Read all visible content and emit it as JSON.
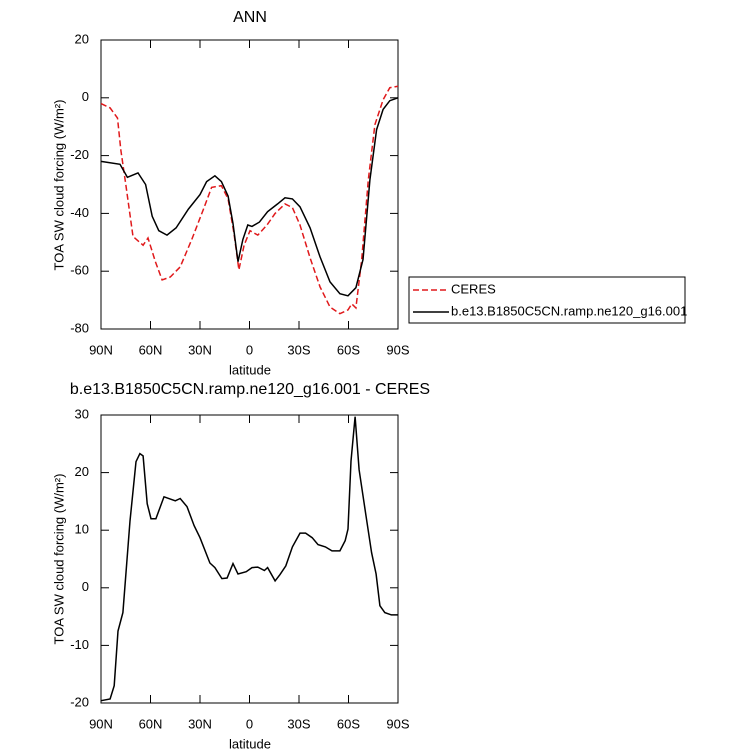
{
  "chart_data": [
    {
      "type": "line",
      "title": "ANN",
      "xlabel": "latitude",
      "ylabel": "TOA SW cloud forcing (W/m²)",
      "xlim": [
        90,
        -90
      ],
      "xticks": [
        {
          "value": 90,
          "label": "90N"
        },
        {
          "value": 60,
          "label": "60N"
        },
        {
          "value": 30,
          "label": "30N"
        },
        0,
        {
          "value": -30,
          "label": "30S"
        },
        {
          "value": -60,
          "label": "60S"
        },
        {
          "value": -90,
          "label": "90S"
        }
      ],
      "ylim": [
        -80,
        20
      ],
      "yticks": [
        20,
        0,
        -20,
        -40,
        -60,
        -80
      ],
      "legend": "right",
      "series": [
        {
          "name": "CERES",
          "color": "#e0191b",
          "dash": true,
          "x": [
            90,
            84.5,
            80,
            78,
            75,
            70.6,
            64.5,
            61.5,
            57,
            53,
            48,
            42,
            35,
            28,
            23,
            17,
            13,
            9.4,
            6.4,
            3.3,
            -0.3,
            -5,
            -10.6,
            -15.5,
            -21.5,
            -26,
            -30.6,
            -36.7,
            -42.7,
            -48.8,
            -54.8,
            -59.7,
            -62,
            -64.5,
            -68,
            -72,
            -76,
            -81,
            -85,
            -90
          ],
          "values": [
            -2,
            -3.5,
            -7,
            -18,
            -30,
            -48,
            -51,
            -48.5,
            -56.7,
            -63,
            -62,
            -58.5,
            -49,
            -38.7,
            -31,
            -30.4,
            -35,
            -47,
            -59.5,
            -51,
            -46,
            -47.5,
            -44,
            -40,
            -36.7,
            -38,
            -44,
            -55.4,
            -65.4,
            -72.4,
            -74.7,
            -73.4,
            -71.3,
            -72.7,
            -56,
            -28.4,
            -9.3,
            -0.7,
            3.5,
            4
          ]
        },
        {
          "name": "b.e13.B1850C5CN.ramp.ne120_g16.001",
          "color": "#000000",
          "dash": false,
          "x": [
            90,
            78.5,
            74,
            67.6,
            63,
            59,
            55,
            50,
            44.5,
            37,
            30,
            26,
            21,
            17,
            13,
            10,
            7,
            4,
            1,
            -1.5,
            -6,
            -11,
            -17,
            -21.5,
            -26,
            -30.6,
            -36.7,
            -42.7,
            -48.8,
            -54.8,
            -59.7,
            -64.5,
            -68.8,
            -73,
            -77,
            -81,
            -85,
            -90
          ],
          "values": [
            -22,
            -23,
            -27.5,
            -26,
            -30,
            -41,
            -46,
            -47.5,
            -45,
            -38.5,
            -33.5,
            -29,
            -27,
            -29,
            -34,
            -43.5,
            -56.7,
            -49,
            -44,
            -44.5,
            -43,
            -39.4,
            -36.7,
            -34.6,
            -35,
            -37.7,
            -45,
            -55,
            -63.7,
            -67.8,
            -68.5,
            -65.7,
            -56,
            -28.4,
            -11,
            -4,
            -1,
            0
          ]
        }
      ]
    },
    {
      "type": "line",
      "title": "b.e13.B1850C5CN.ramp.ne120_g16.001 - CERES",
      "xlabel": "latitude",
      "ylabel": "TOA SW cloud forcing (W/m²)",
      "xlim": [
        90,
        -90
      ],
      "xticks": [
        {
          "value": 90,
          "label": "90N"
        },
        {
          "value": 60,
          "label": "60N"
        },
        {
          "value": 30,
          "label": "30N"
        },
        0,
        {
          "value": -30,
          "label": "30S"
        },
        {
          "value": -60,
          "label": "60S"
        },
        {
          "value": -90,
          "label": "90S"
        }
      ],
      "ylim": [
        -20,
        30
      ],
      "yticks": [
        30,
        20,
        10,
        0,
        -10,
        -20
      ],
      "color": "#000000",
      "x": [
        90,
        84.5,
        82,
        79.7,
        76.7,
        72.4,
        68.8,
        66.4,
        64.5,
        62,
        59.7,
        56.7,
        51.8,
        45,
        42,
        37.9,
        33.6,
        30,
        24,
        21,
        16.7,
        13.6,
        10,
        7,
        2,
        -1.5,
        -5,
        -9,
        -11,
        -15.5,
        -18.5,
        -22,
        -26,
        -30.6,
        -34,
        -38,
        -41.5,
        -46,
        -50,
        -54.8,
        -58,
        -59.7,
        -61.5,
        -64,
        -66.4,
        -70.6,
        -74,
        -76.7,
        -79,
        -82,
        -86,
        -90
      ],
      "values": [
        -19.6,
        -19.3,
        -17,
        -7.5,
        -4.3,
        11.6,
        21.9,
        23.3,
        22.9,
        14.6,
        12,
        12,
        15.8,
        15.1,
        15.5,
        14.1,
        10.8,
        8.7,
        4.3,
        3.5,
        1.6,
        1.7,
        4.2,
        2.4,
        2.8,
        3.5,
        3.6,
        3,
        3.5,
        1.2,
        2.3,
        3.8,
        7.1,
        9.5,
        9.5,
        8.7,
        7.5,
        7.1,
        6.4,
        6.4,
        8.2,
        10.2,
        22,
        29.7,
        20.5,
        12.5,
        6.1,
        2.4,
        -3.1,
        -4.3,
        -4.7,
        -4.7
      ]
    }
  ]
}
